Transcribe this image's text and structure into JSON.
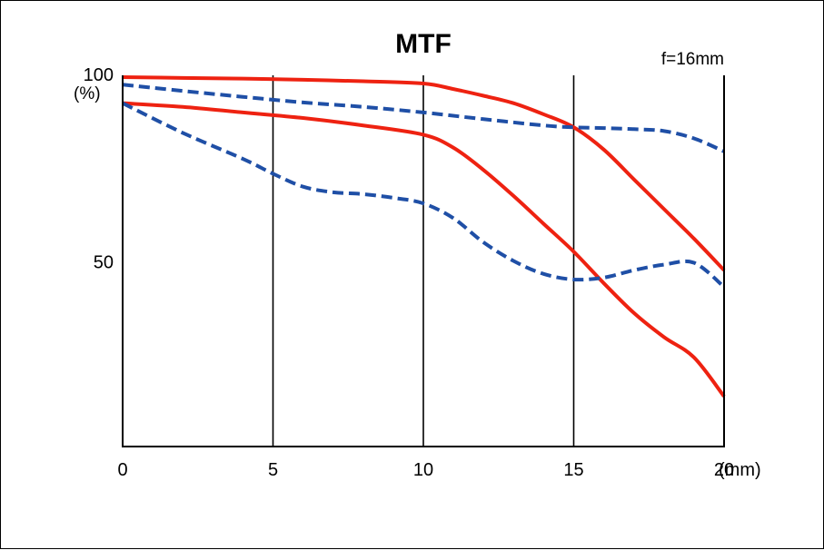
{
  "chart_data": {
    "type": "line",
    "title": "MTF",
    "annotation": "f=16mm",
    "y_unit": "(%)",
    "x_unit": "(mm)",
    "xlim": [
      0,
      20
    ],
    "ylim": [
      0,
      100
    ],
    "x_ticks": [
      {
        "value": 0,
        "label": "0"
      },
      {
        "value": 5,
        "label": "5"
      },
      {
        "value": 10,
        "label": "10"
      },
      {
        "value": 15,
        "label": "15"
      },
      {
        "value": 20,
        "label": "20"
      }
    ],
    "y_ticks": [
      {
        "value": 100,
        "label": "100"
      },
      {
        "value": 50,
        "label": "50"
      }
    ],
    "vertical_gridlines_at": [
      5,
      10,
      15
    ],
    "series": [
      {
        "color": "#ee2211",
        "style": "solid",
        "x": [
          0,
          2,
          4,
          6,
          8,
          10,
          11,
          12,
          13,
          14,
          15,
          16,
          17,
          18,
          19,
          20
        ],
        "y": [
          99.5,
          99.3,
          99.1,
          98.8,
          98.4,
          97.8,
          96.3,
          94.5,
          92.5,
          89.5,
          86.0,
          80.0,
          72.0,
          64.0,
          56.0,
          47.5
        ]
      },
      {
        "color": "#ee2211",
        "style": "solid",
        "x": [
          0,
          2,
          4,
          6,
          8,
          10,
          11,
          12,
          13,
          14,
          15,
          16,
          17,
          18,
          19,
          20
        ],
        "y": [
          92.5,
          91.5,
          90.0,
          88.5,
          86.5,
          84.0,
          80.5,
          74.5,
          67.5,
          60.0,
          52.5,
          44.0,
          36.0,
          29.5,
          24.0,
          13.5
        ]
      },
      {
        "color": "#1f4fa6",
        "style": "dashed",
        "x": [
          0,
          2,
          4,
          6,
          8,
          10,
          12,
          14,
          15,
          16,
          17,
          18,
          19,
          20
        ],
        "y": [
          97.5,
          95.8,
          94.2,
          92.7,
          91.5,
          90.0,
          88.2,
          86.5,
          86.0,
          85.8,
          85.5,
          85.0,
          83.0,
          79.5
        ]
      },
      {
        "color": "#1f4fa6",
        "style": "dashed",
        "x": [
          0,
          2,
          4,
          5,
          6,
          7,
          8,
          9,
          10,
          11,
          12,
          13,
          14,
          15,
          16,
          17,
          18,
          19,
          20
        ],
        "y": [
          92.5,
          84.5,
          77.5,
          73.5,
          70.0,
          68.5,
          68.0,
          67.0,
          65.5,
          61.5,
          55.0,
          50.0,
          46.5,
          45.0,
          45.5,
          47.5,
          49.0,
          49.5,
          43.0
        ]
      }
    ]
  }
}
